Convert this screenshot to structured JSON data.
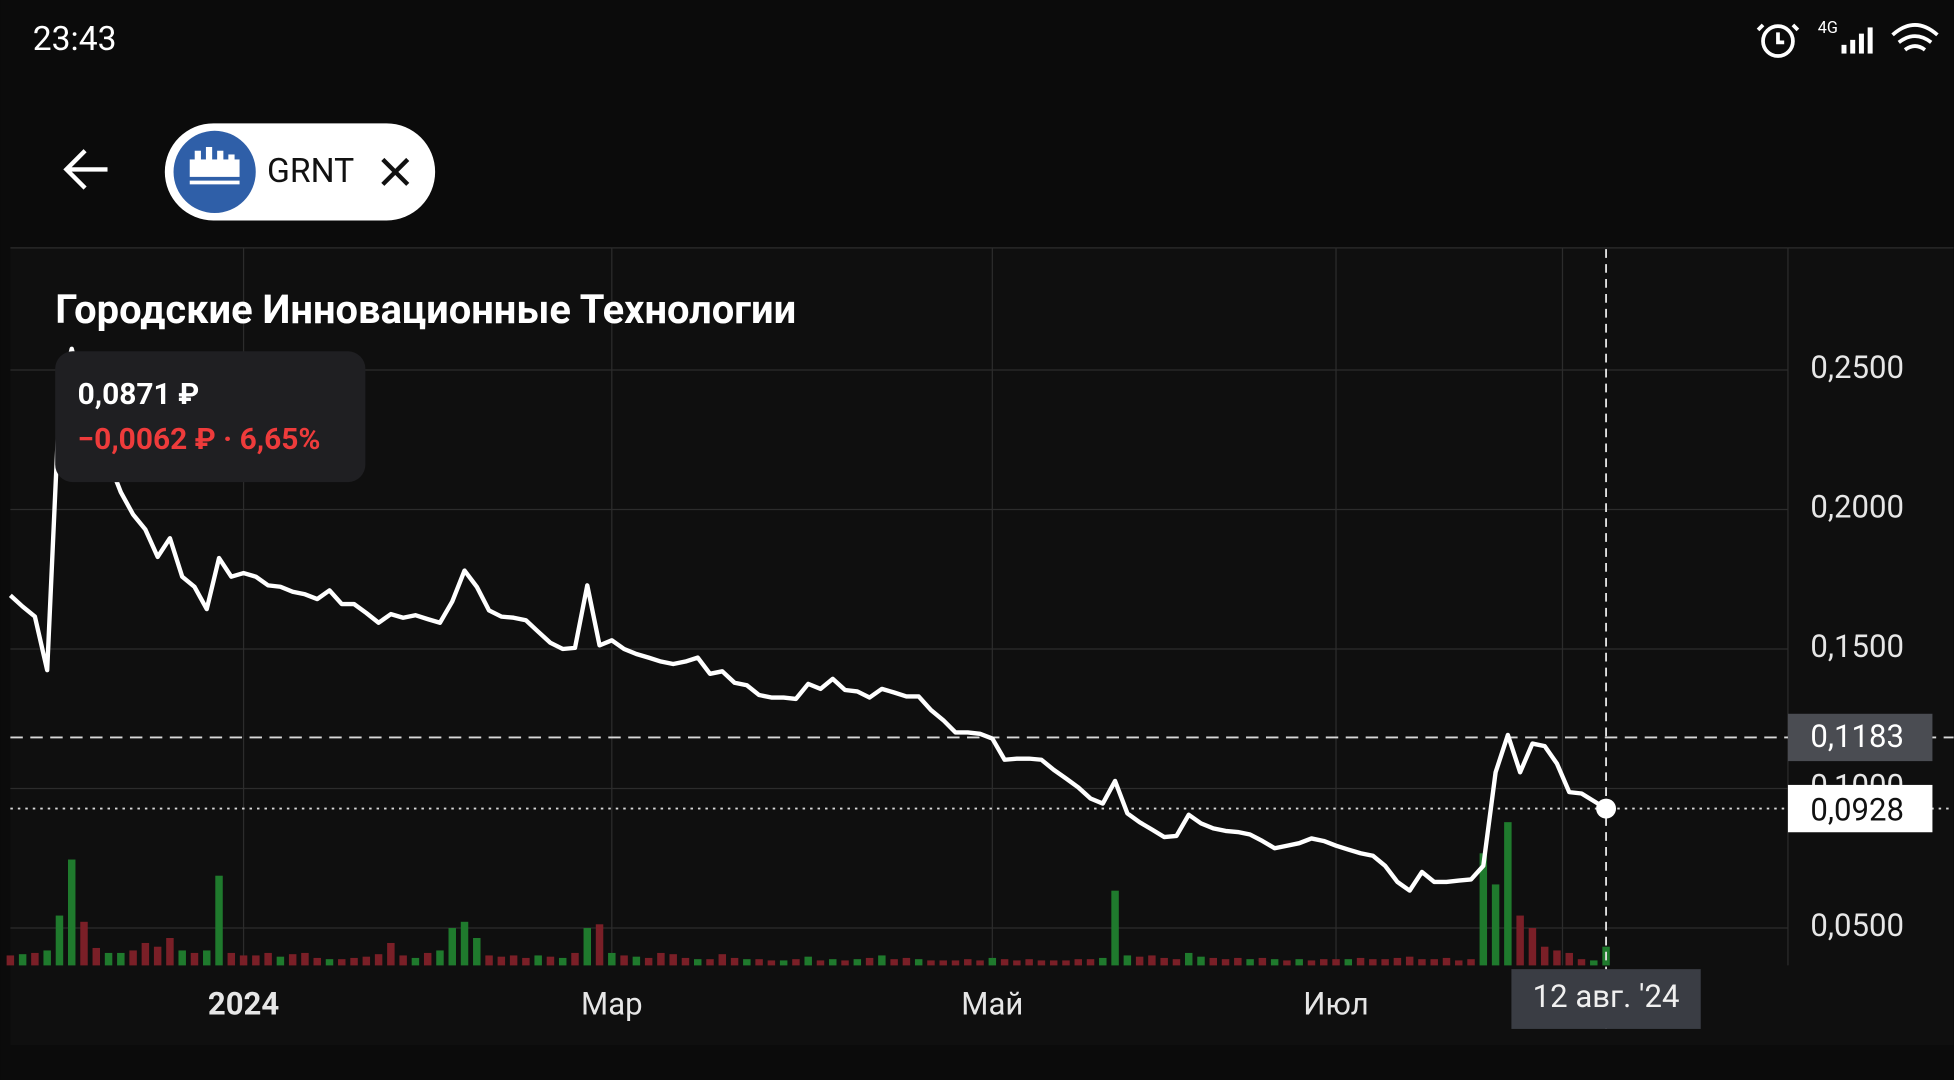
{
  "status_bar": {
    "time": "23:43",
    "network": "4G"
  },
  "header": {
    "ticker": "GRNT"
  },
  "tooltip": {
    "price": "0,0871 ₽",
    "change": "−0,0062 ₽ · 6,65%"
  },
  "chart_data": {
    "type": "line",
    "title": "Городские Инновационные Технологии",
    "categories": [
      null,
      null,
      null,
      null,
      null,
      null,
      null,
      null,
      null,
      null,
      null,
      null,
      null,
      null,
      null,
      null,
      null,
      null,
      null,
      "2024",
      null,
      null,
      null,
      null,
      null,
      null,
      null,
      null,
      null,
      null,
      null,
      null,
      null,
      null,
      null,
      null,
      null,
      null,
      null,
      null,
      null,
      null,
      null,
      null,
      null,
      null,
      null,
      null,
      null,
      "Мар",
      null,
      null,
      null,
      null,
      null,
      null,
      null,
      null,
      null,
      null,
      null,
      null,
      null,
      null,
      null,
      null,
      null,
      null,
      null,
      null,
      null,
      null,
      null,
      null,
      null,
      null,
      null,
      null,
      null,
      null,
      "Май",
      null,
      null,
      null,
      null,
      null,
      null,
      null,
      null,
      null,
      null,
      null,
      null,
      null,
      null,
      null,
      null,
      null,
      null,
      null,
      null,
      null,
      null,
      null,
      null,
      null,
      null,
      null,
      "Июл",
      null,
      null,
      null,
      null,
      null,
      null,
      null,
      null,
      null,
      null,
      null,
      null,
      null,
      null,
      null,
      null,
      null,
      null,
      null,
      null,
      null,
      "12 авг. '24"
    ],
    "color": "#ffffff",
    "values": [
      0.1692,
      0.1652,
      0.1616,
      0.1424,
      0.2393,
      0.2576,
      0.2397,
      0.2286,
      0.2174,
      0.2062,
      0.1982,
      0.1928,
      0.183,
      0.1897,
      0.1759,
      0.1723,
      0.1643,
      0.1826,
      0.1759,
      0.1772,
      0.1759,
      0.1728,
      0.1723,
      0.1705,
      0.1696,
      0.1679,
      0.171,
      0.1661,
      0.1661,
      0.1629,
      0.1594,
      0.1625,
      0.1612,
      0.1621,
      0.1607,
      0.1594,
      0.167,
      0.1781,
      0.1723,
      0.1638,
      0.1616,
      0.1612,
      0.1603,
      0.1562,
      0.1522,
      0.15,
      0.1504,
      0.1728,
      0.1513,
      0.1531,
      0.15,
      0.1482,
      0.1469,
      0.1455,
      0.1446,
      0.1455,
      0.1469,
      0.1411,
      0.142,
      0.1379,
      0.137,
      0.1335,
      0.1326,
      0.1326,
      0.1321,
      0.1375,
      0.1357,
      0.1393,
      0.1353,
      0.1348,
      0.1326,
      0.1357,
      0.1344,
      0.133,
      0.133,
      0.1281,
      0.1245,
      0.1201,
      0.1201,
      0.1196,
      0.1179,
      0.1103,
      0.1107,
      0.1107,
      0.1103,
      0.1067,
      0.1036,
      0.1004,
      0.0964,
      0.0946,
      0.1027,
      0.0911,
      0.0879,
      0.0853,
      0.0826,
      0.083,
      0.0906,
      0.0875,
      0.0857,
      0.0848,
      0.0844,
      0.0835,
      0.0812,
      0.0786,
      0.0795,
      0.0804,
      0.0821,
      0.0812,
      0.0795,
      0.0781,
      0.0768,
      0.0759,
      0.0723,
      0.0665,
      0.0634,
      0.0701,
      0.0665,
      0.0665,
      0.067,
      0.0674,
      0.0723,
      0.1058,
      0.1192,
      0.1058,
      0.1161,
      0.1152,
      0.1089,
      0.0987,
      0.0982,
      0.0955,
      0.0928
    ],
    "volume": [
      {
        "color": "#1f7a2d",
        "values": [
          null,
          9,
          null,
          12,
          40,
          85,
          null,
          null,
          10,
          10,
          null,
          null,
          null,
          null,
          12,
          null,
          12,
          72,
          null,
          null,
          null,
          null,
          7,
          null,
          null,
          null,
          5,
          null,
          null,
          null,
          null,
          null,
          null,
          6,
          null,
          12,
          30,
          35,
          22,
          null,
          null,
          null,
          null,
          8,
          null,
          6,
          null,
          30,
          null,
          10,
          null,
          7,
          null,
          null,
          null,
          null,
          5,
          null,
          null,
          null,
          5,
          null,
          null,
          4,
          null,
          7,
          null,
          5,
          null,
          5,
          null,
          8,
          null,
          null,
          5,
          null,
          null,
          null,
          null,
          null,
          6,
          null,
          null,
          null,
          null,
          null,
          null,
          null,
          null,
          6,
          60,
          8,
          null,
          null,
          null,
          null,
          10,
          7,
          null,
          null,
          null,
          5,
          null,
          5,
          null,
          5,
          null,
          null,
          null,
          5,
          null,
          null,
          null,
          null,
          null,
          null,
          null,
          null,
          null,
          null,
          90,
          65,
          115,
          null,
          null,
          null,
          null,
          null,
          null,
          4,
          15
        ]
      },
      {
        "color": "#7a1f27",
        "values": [
          8,
          null,
          10,
          null,
          null,
          null,
          35,
          14,
          null,
          null,
          12,
          18,
          15,
          22,
          null,
          10,
          null,
          null,
          10,
          8,
          8,
          10,
          null,
          9,
          10,
          6,
          null,
          5,
          6,
          7,
          9,
          18,
          8,
          null,
          10,
          null,
          null,
          null,
          null,
          8,
          7,
          8,
          6,
          null,
          7,
          null,
          10,
          null,
          33,
          null,
          8,
          null,
          6,
          10,
          9,
          6,
          null,
          5,
          9,
          6,
          null,
          5,
          4,
          null,
          5,
          null,
          4,
          null,
          4,
          null,
          6,
          null,
          5,
          6,
          null,
          4,
          4,
          4,
          5,
          4,
          null,
          5,
          4,
          5,
          4,
          4,
          4,
          5,
          5,
          null,
          null,
          null,
          7,
          8,
          6,
          5,
          null,
          null,
          6,
          5,
          6,
          null,
          6,
          null,
          4,
          null,
          4,
          5,
          5,
          null,
          6,
          5,
          5,
          6,
          7,
          5,
          5,
          6,
          4,
          5,
          null,
          null,
          null,
          40,
          30,
          15,
          12,
          10,
          5,
          null,
          null
        ]
      }
    ],
    "vlim": [
      0,
      120
    ],
    "ylim": [
      0.0366,
      0.2933
    ],
    "yticks": [
      {
        "value": 0.05,
        "label": "0,0500"
      },
      {
        "value": 0.1,
        "label": "0,1000"
      },
      {
        "value": 0.15,
        "label": "0,1500"
      },
      {
        "value": 0.2,
        "label": "0,2000"
      },
      {
        "value": 0.25,
        "label": "0,2500"
      }
    ],
    "grid": true,
    "high_line": {
      "value": 0.1183,
      "label": "0,1183"
    },
    "last_price": {
      "value": 0.0928,
      "label": "0,0928"
    }
  }
}
